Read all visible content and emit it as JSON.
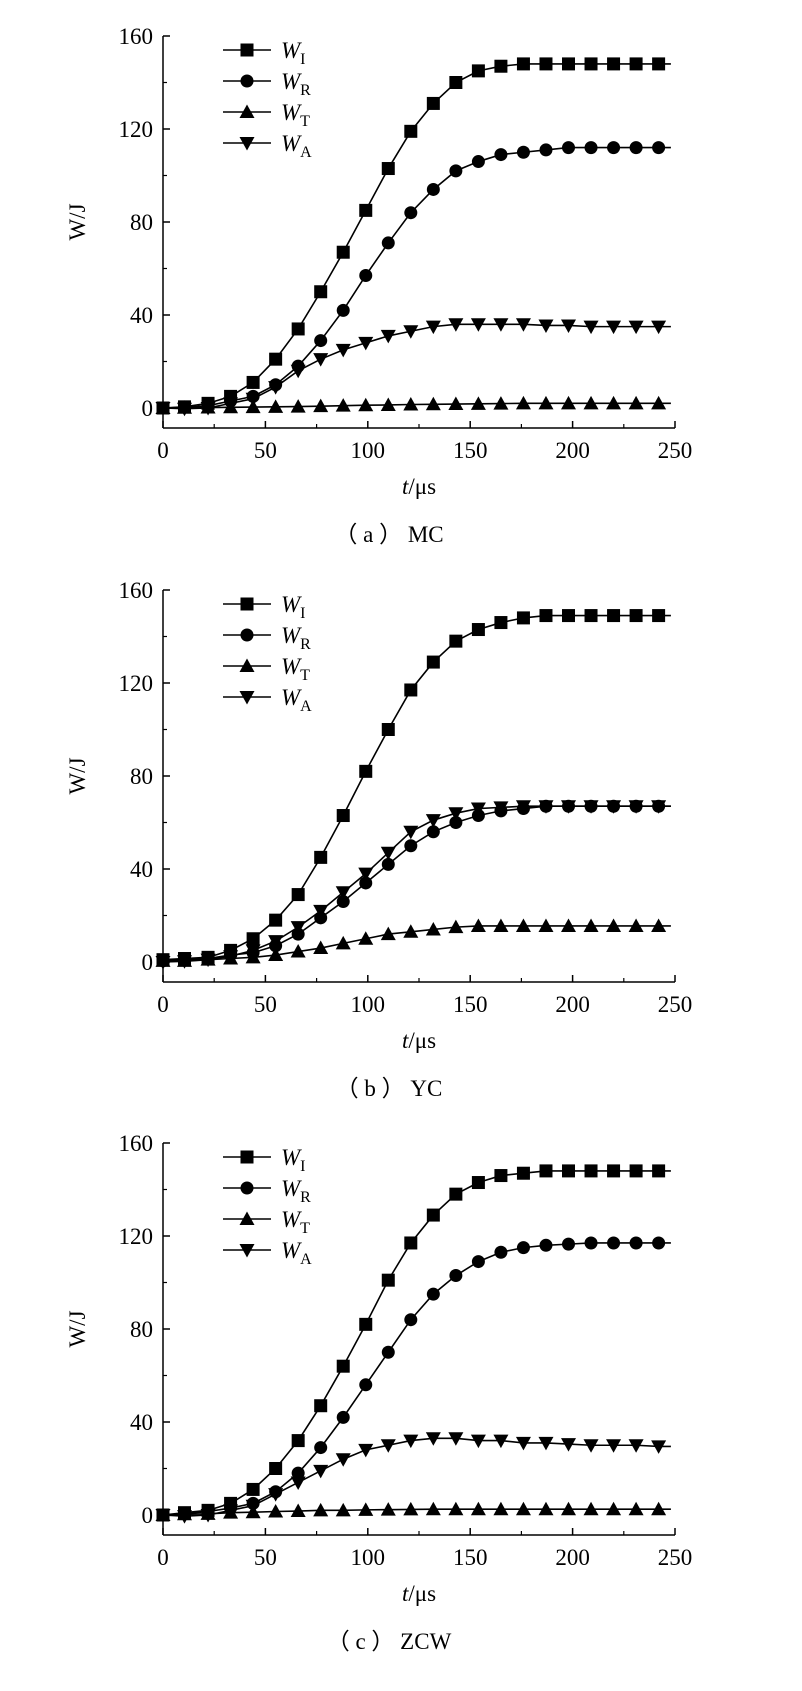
{
  "chart_data": [
    {
      "type": "line",
      "caption": "（ a ） MC",
      "xlabel_var": "t",
      "xlabel_unit": "/μs",
      "ylabel": "W/J",
      "xlim": [
        0,
        250
      ],
      "ylim": [
        0,
        160
      ],
      "xticks": [
        "0",
        "50",
        "100",
        "150",
        "200",
        "250"
      ],
      "yticks": [
        "0",
        "40",
        "80",
        "120",
        "160"
      ],
      "legend_position": "top-left",
      "grid": false,
      "x": [
        0,
        10.5,
        22,
        33,
        44,
        55,
        66,
        77,
        88,
        99,
        110,
        121,
        132,
        143,
        154,
        165,
        176,
        187,
        198,
        209,
        220,
        231,
        242
      ],
      "series": [
        {
          "name": "W",
          "subscript": "I",
          "marker": "square",
          "values": [
            0,
            0.5,
            2,
            5,
            11,
            21,
            34,
            50,
            67,
            85,
            103,
            119,
            131,
            140,
            145,
            147,
            148,
            148,
            148,
            148,
            148,
            148,
            148
          ]
        },
        {
          "name": "W",
          "subscript": "R",
          "marker": "circle",
          "values": [
            0,
            0.3,
            1,
            3,
            5,
            10,
            18,
            29,
            42,
            57,
            71,
            84,
            94,
            102,
            106,
            109,
            110,
            111,
            112,
            112,
            112,
            112,
            112
          ]
        },
        {
          "name": "W",
          "subscript": "T",
          "marker": "triangle-up",
          "values": [
            0,
            0.1,
            0.2,
            0.3,
            0.4,
            0.5,
            0.6,
            0.8,
            1,
            1.2,
            1.3,
            1.5,
            1.6,
            1.7,
            1.8,
            1.9,
            2,
            2,
            2,
            2,
            2,
            2,
            2
          ]
        },
        {
          "name": "W",
          "subscript": "A",
          "marker": "triangle-down",
          "values": [
            0,
            -0.3,
            0,
            2,
            4,
            9,
            16,
            21,
            25,
            28,
            31,
            33,
            35,
            36,
            36,
            36,
            36,
            35.5,
            35.5,
            35,
            35,
            35,
            35
          ]
        }
      ]
    },
    {
      "type": "line",
      "caption": "（ b ） YC",
      "xlabel_var": "t",
      "xlabel_unit": "/μs",
      "ylabel": "W/J",
      "xlim": [
        0,
        250
      ],
      "ylim": [
        0,
        160
      ],
      "xticks": [
        "0",
        "50",
        "100",
        "150",
        "200",
        "250"
      ],
      "yticks": [
        "0",
        "40",
        "80",
        "120",
        "160"
      ],
      "legend_position": "top-left",
      "grid": false,
      "x": [
        0,
        10.5,
        22,
        33,
        44,
        55,
        66,
        77,
        88,
        99,
        110,
        121,
        132,
        143,
        154,
        165,
        176,
        187,
        198,
        209,
        220,
        231,
        242
      ],
      "series": [
        {
          "name": "W",
          "subscript": "I",
          "marker": "square",
          "values": [
            1,
            1.5,
            2,
            5,
            10,
            18,
            29,
            45,
            63,
            82,
            100,
            117,
            129,
            138,
            143,
            146,
            148,
            149,
            149,
            149,
            149,
            149,
            149
          ]
        },
        {
          "name": "W",
          "subscript": "R",
          "marker": "circle",
          "values": [
            0.5,
            1,
            1.5,
            3,
            4,
            7,
            12,
            19,
            26,
            34,
            42,
            50,
            56,
            60,
            63,
            65,
            66,
            67,
            67,
            67,
            67,
            67,
            67
          ]
        },
        {
          "name": "W",
          "subscript": "T",
          "marker": "triangle-up",
          "values": [
            0.5,
            0.5,
            1,
            1.5,
            2,
            3,
            4.5,
            6,
            8,
            10,
            12,
            13,
            14,
            15,
            15.5,
            15.5,
            15.5,
            15.5,
            15.5,
            15.5,
            15.5,
            15.5,
            15.5
          ]
        },
        {
          "name": "W",
          "subscript": "A",
          "marker": "triangle-down",
          "values": [
            0,
            0.3,
            1,
            2.5,
            5,
            9,
            15,
            22,
            30,
            38,
            47,
            56,
            61,
            64,
            66,
            66.5,
            67,
            67,
            67,
            67,
            67,
            67,
            67
          ]
        }
      ]
    },
    {
      "type": "line",
      "caption": "（ c ） ZCW",
      "xlabel_var": "t",
      "xlabel_unit": "/μs",
      "ylabel": "W/J",
      "xlim": [
        0,
        250
      ],
      "ylim": [
        0,
        160
      ],
      "xticks": [
        "0",
        "50",
        "100",
        "150",
        "200",
        "250"
      ],
      "yticks": [
        "0",
        "40",
        "80",
        "120",
        "160"
      ],
      "legend_position": "top-left",
      "grid": false,
      "x": [
        0,
        10.5,
        22,
        33,
        44,
        55,
        66,
        77,
        88,
        99,
        110,
        121,
        132,
        143,
        154,
        165,
        176,
        187,
        198,
        209,
        220,
        231,
        242
      ],
      "series": [
        {
          "name": "W",
          "subscript": "I",
          "marker": "square",
          "values": [
            0,
            1,
            2,
            5,
            11,
            20,
            32,
            47,
            64,
            82,
            101,
            117,
            129,
            138,
            143,
            146,
            147,
            148,
            148,
            148,
            148,
            148,
            148
          ]
        },
        {
          "name": "W",
          "subscript": "R",
          "marker": "circle",
          "values": [
            0,
            0.5,
            1.5,
            3,
            5,
            10,
            18,
            29,
            42,
            56,
            70,
            84,
            95,
            103,
            109,
            113,
            115,
            116,
            116.5,
            117,
            117,
            117,
            117
          ]
        },
        {
          "name": "W",
          "subscript": "T",
          "marker": "triangle-up",
          "values": [
            0,
            0.3,
            0.5,
            1,
            1.2,
            1.5,
            1.7,
            2,
            2,
            2.2,
            2.3,
            2.4,
            2.5,
            2.5,
            2.5,
            2.5,
            2.5,
            2.5,
            2.5,
            2.5,
            2.5,
            2.5,
            2.5
          ]
        },
        {
          "name": "W",
          "subscript": "A",
          "marker": "triangle-down",
          "values": [
            0,
            -0.5,
            0,
            2,
            4,
            9,
            14,
            19,
            24,
            28,
            30,
            32,
            33,
            33,
            32,
            32,
            31,
            31,
            30.5,
            30,
            30,
            30,
            29.5
          ]
        }
      ]
    }
  ]
}
